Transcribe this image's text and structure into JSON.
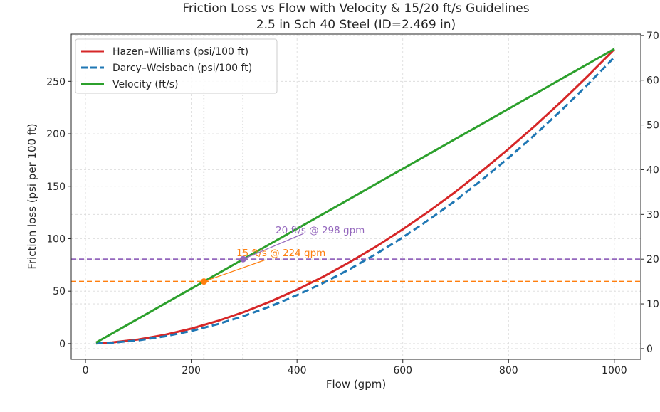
{
  "chart_data": {
    "type": "line",
    "title": "Friction Loss vs Flow with Velocity & 15/20 ft/s Guidelines",
    "subtitle": "2.5 in Sch 40 Steel (ID=2.469 in)",
    "xlabel": "Flow (gpm)",
    "ylabel": "Friction loss (psi per 100 ft)",
    "y2label": "",
    "xlim": [
      -27,
      1050
    ],
    "ylim": [
      -15,
      295
    ],
    "y2lim": [
      -2.4,
      70.3
    ],
    "xticks": [
      0,
      200,
      400,
      600,
      800,
      1000
    ],
    "yticks": [
      0,
      50,
      100,
      150,
      200,
      250
    ],
    "y2ticks": [
      0,
      10,
      20,
      30,
      40,
      50,
      60,
      70
    ],
    "grid": true,
    "legend_position": "top-left",
    "x": [
      20,
      50,
      100,
      150,
      200,
      250,
      300,
      350,
      400,
      450,
      500,
      550,
      600,
      650,
      700,
      750,
      800,
      850,
      900,
      950,
      1000
    ],
    "series": [
      {
        "name": "Hazen–Williams (psi/100 ft)",
        "axis": "left",
        "color": "#d62728",
        "style": "solid",
        "values": [
          0.2,
          1.09,
          3.95,
          8.36,
          14.26,
          21.55,
          30.2,
          40.2,
          51.4,
          63.9,
          77.8,
          92.7,
          109.0,
          126.3,
          144.9,
          164.7,
          185.6,
          207.7,
          230.8,
          255.2,
          280.6
        ]
      },
      {
        "name": "Darcy–Weisbach (psi/100 ft)",
        "axis": "left",
        "color": "#1f77b4",
        "style": "dashed",
        "values": [
          0.14,
          0.82,
          3.13,
          6.88,
          12.04,
          18.55,
          26.4,
          35.6,
          46.2,
          57.9,
          71.1,
          85.6,
          101.3,
          118.3,
          136.5,
          156.2,
          177.1,
          199.2,
          222.5,
          247.1,
          273.0
        ]
      },
      {
        "name": "Velocity (ft/s)",
        "axis": "right",
        "color": "#2ca02c",
        "style": "solid",
        "values": [
          1.34,
          3.35,
          6.7,
          10.05,
          13.4,
          16.75,
          20.1,
          23.45,
          26.8,
          30.15,
          33.5,
          36.85,
          40.2,
          43.55,
          46.9,
          50.25,
          53.6,
          56.95,
          60.3,
          63.65,
          67.0
        ]
      }
    ],
    "guidelines": [
      {
        "velocity": 15,
        "flow": 224,
        "color": "#ff7f0e",
        "label": "15 ft/s @ 224 gpm"
      },
      {
        "velocity": 20,
        "flow": 298,
        "color": "#9467bd",
        "label": "20 ft/s @ 298 gpm"
      }
    ]
  }
}
